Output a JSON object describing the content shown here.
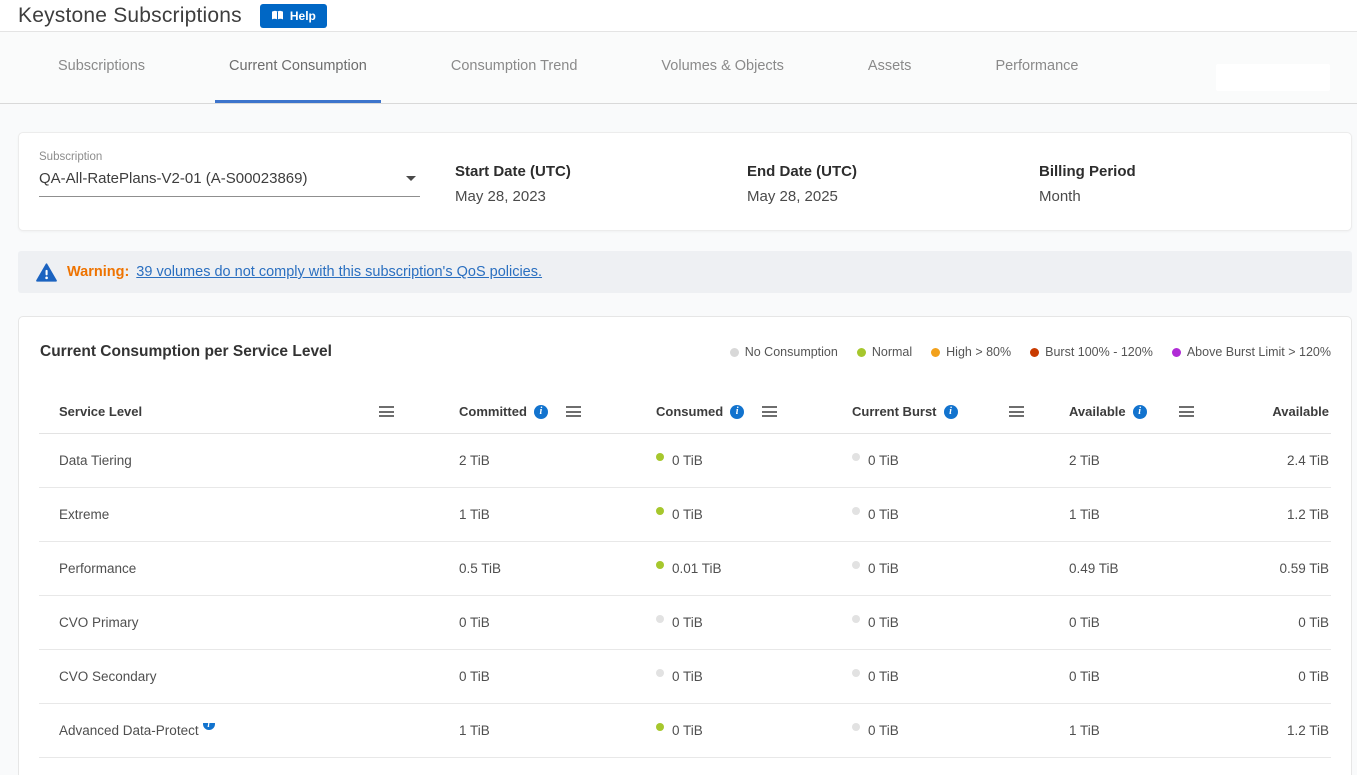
{
  "header": {
    "title": "Keystone Subscriptions",
    "help_label": "Help"
  },
  "tabs": [
    {
      "label": "Subscriptions",
      "active": false
    },
    {
      "label": "Current Consumption",
      "active": true
    },
    {
      "label": "Consumption Trend",
      "active": false
    },
    {
      "label": "Volumes & Objects",
      "active": false
    },
    {
      "label": "Assets",
      "active": false
    },
    {
      "label": "Performance",
      "active": false
    }
  ],
  "filter": {
    "subscription_label": "Subscription",
    "subscription_value": "QA-All-RatePlans-V2-01 (A-S00023869)",
    "fields": [
      {
        "label": "Start Date (UTC)",
        "value": "May 28, 2023"
      },
      {
        "label": "End Date (UTC)",
        "value": "May 28, 2025"
      },
      {
        "label": "Billing Period",
        "value": "Month"
      }
    ]
  },
  "warning": {
    "label": "Warning:",
    "link_text": "39 volumes do not comply with this subscription's QoS policies."
  },
  "consumption": {
    "title": "Current Consumption per Service Level",
    "legend": [
      {
        "label": "No Consumption",
        "color": "#d8d8d8"
      },
      {
        "label": "Normal",
        "color": "#a6c72d"
      },
      {
        "label": "High > 80%",
        "color": "#f2a11c"
      },
      {
        "label": "Burst 100% - 120%",
        "color": "#c93b00"
      },
      {
        "label": "Above Burst Limit > 120%",
        "color": "#b02bd6"
      }
    ],
    "status_colors": {
      "normal": "#a6c72d",
      "none": "#e2e2e2"
    },
    "columns": [
      {
        "label": "Service Level",
        "info": false
      },
      {
        "label": "Committed",
        "info": true
      },
      {
        "label": "Consumed",
        "info": true
      },
      {
        "label": "Current Burst",
        "info": true
      },
      {
        "label": "Available",
        "info": true
      },
      {
        "label": "Available",
        "info": false
      }
    ],
    "rows": [
      {
        "service_level": "Data Tiering",
        "info": false,
        "committed": "2 TiB",
        "consumed": "0 TiB",
        "consumed_status": "normal",
        "current_burst": "0 TiB",
        "burst_status": "none",
        "available": "2 TiB",
        "available_2": "2.4 TiB"
      },
      {
        "service_level": "Extreme",
        "info": false,
        "committed": "1 TiB",
        "consumed": "0 TiB",
        "consumed_status": "normal",
        "current_burst": "0 TiB",
        "burst_status": "none",
        "available": "1 TiB",
        "available_2": "1.2 TiB"
      },
      {
        "service_level": "Performance",
        "info": false,
        "committed": "0.5 TiB",
        "consumed": "0.01 TiB",
        "consumed_status": "normal",
        "current_burst": "0 TiB",
        "burst_status": "none",
        "available": "0.49 TiB",
        "available_2": "0.59 TiB"
      },
      {
        "service_level": "CVO Primary",
        "info": false,
        "committed": "0 TiB",
        "consumed": "0 TiB",
        "consumed_status": "none",
        "current_burst": "0 TiB",
        "burst_status": "none",
        "available": "0 TiB",
        "available_2": "0 TiB"
      },
      {
        "service_level": "CVO Secondary",
        "info": false,
        "committed": "0 TiB",
        "consumed": "0 TiB",
        "consumed_status": "none",
        "current_burst": "0 TiB",
        "burst_status": "none",
        "available": "0 TiB",
        "available_2": "0 TiB"
      },
      {
        "service_level": "Advanced Data-Protect",
        "info": true,
        "committed": "1 TiB",
        "consumed": "0 TiB",
        "consumed_status": "normal",
        "current_burst": "0 TiB",
        "burst_status": "none",
        "available": "1 TiB",
        "available_2": "1.2 TiB"
      }
    ]
  }
}
